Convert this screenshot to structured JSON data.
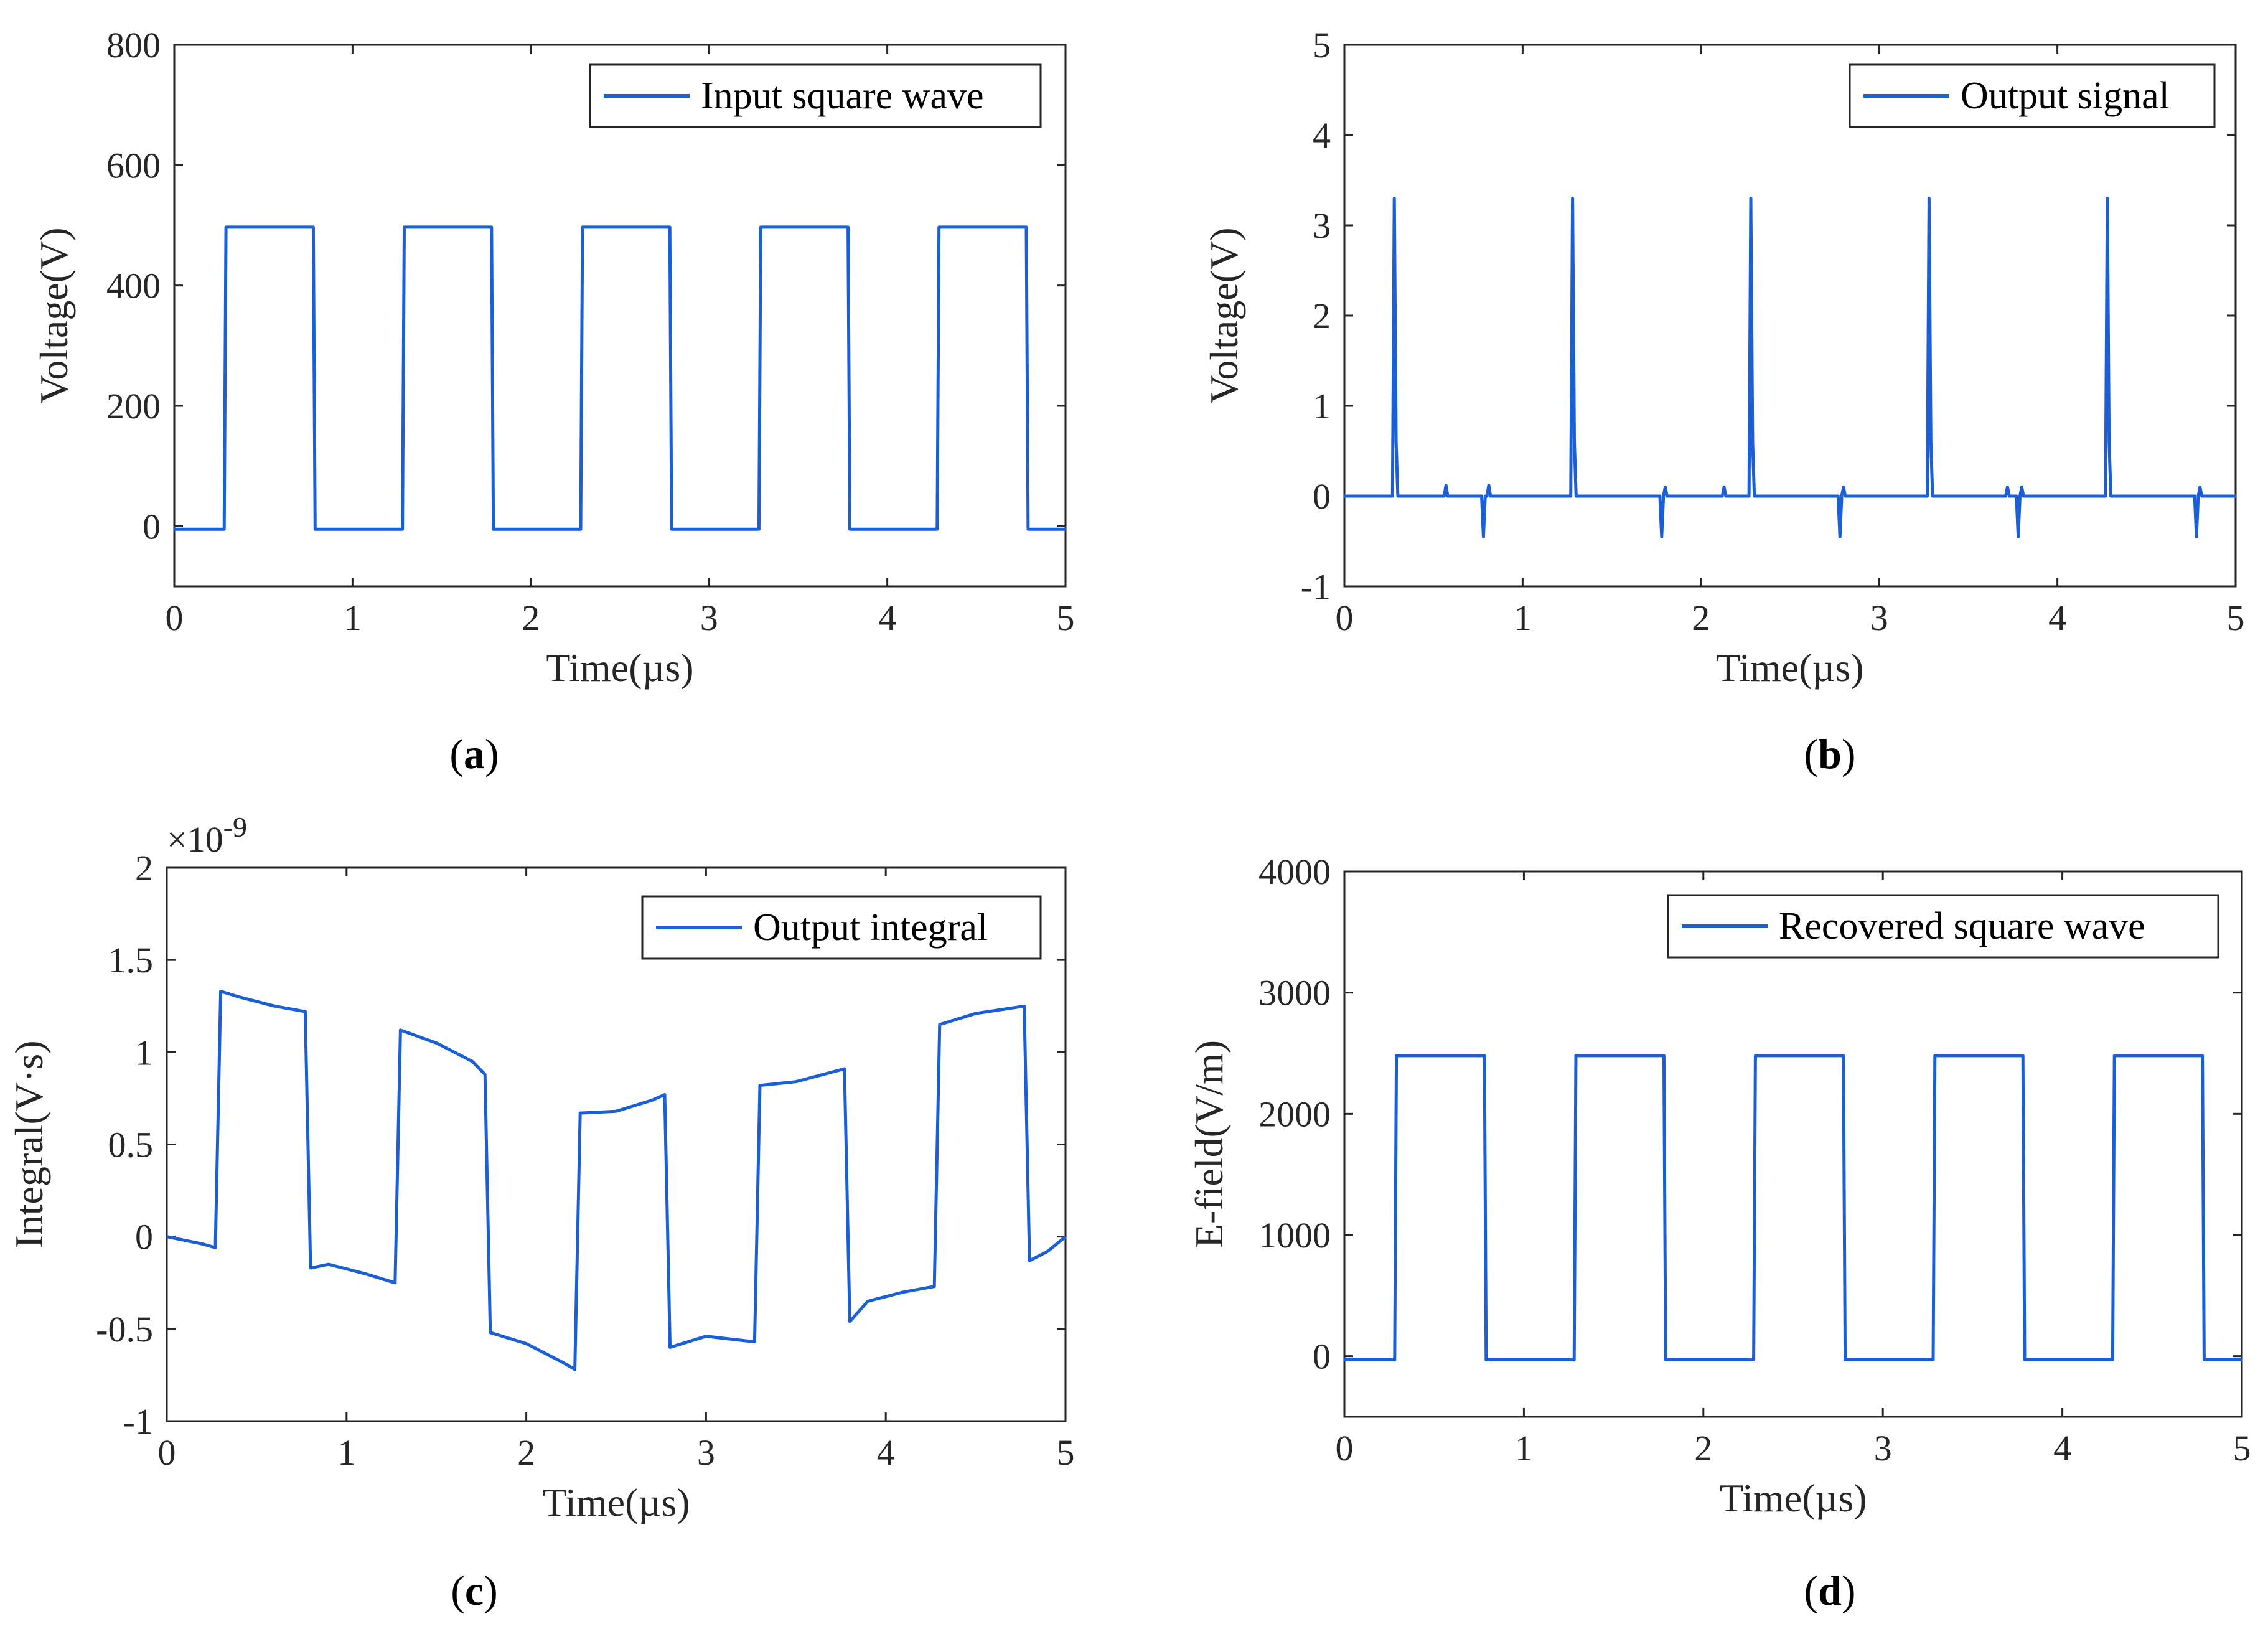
{
  "line_color": "#1a5fd8",
  "chart_data": [
    {
      "type": "line",
      "panel": "a",
      "caption_open": "(",
      "caption_letter": "a",
      "caption_close": ")",
      "xlabel": "Time(µs)",
      "ylabel": "Voltage(V)",
      "xlim": [
        0,
        5
      ],
      "ylim": [
        -100,
        800
      ],
      "xticks": [
        0,
        1,
        2,
        3,
        4,
        5
      ],
      "yticks": [
        0,
        200,
        400,
        600,
        800
      ],
      "ytick_labels": [
        "0",
        "200",
        "400",
        "600",
        "800"
      ],
      "exponent": "",
      "legend": "Input square wave",
      "legend_loc": "top-right",
      "series": [
        {
          "name": "Input square wave",
          "x": [
            0,
            0.28,
            0.29,
            0.78,
            0.79,
            1.28,
            1.29,
            1.78,
            1.79,
            2.28,
            2.29,
            2.78,
            2.79,
            3.28,
            3.29,
            3.78,
            3.79,
            4.28,
            4.29,
            4.78,
            4.79,
            5.0
          ],
          "y": [
            -5,
            -5,
            497,
            497,
            -5,
            -5,
            497,
            497,
            -5,
            -5,
            497,
            497,
            -5,
            -5,
            497,
            497,
            -5,
            -5,
            497,
            497,
            -5,
            -5
          ]
        }
      ]
    },
    {
      "type": "line",
      "panel": "b",
      "caption_open": "(",
      "caption_letter": "b",
      "caption_close": ")",
      "xlabel": "Time(µs)",
      "ylabel": "Voltage(V)",
      "xlim": [
        0,
        5
      ],
      "ylim": [
        -1,
        5
      ],
      "xticks": [
        0,
        1,
        2,
        3,
        4,
        5
      ],
      "yticks": [
        -1,
        0,
        1,
        2,
        3,
        4,
        5
      ],
      "ytick_labels": [
        "-1",
        "0",
        "1",
        "2",
        "3",
        "4",
        "5"
      ],
      "exponent": "",
      "legend": "Output signal",
      "legend_loc": "top-right",
      "series": [
        {
          "name": "Output signal",
          "x": [
            0,
            0.27,
            0.28,
            0.29,
            0.3,
            0.56,
            0.57,
            0.58,
            0.77,
            0.78,
            0.79,
            0.8,
            0.81,
            0.82,
            1.27,
            1.28,
            1.29,
            1.3,
            1.77,
            1.78,
            1.79,
            1.8,
            1.81,
            2.12,
            2.13,
            2.14,
            2.27,
            2.28,
            2.29,
            2.3,
            2.77,
            2.78,
            2.79,
            2.8,
            2.81,
            3.27,
            3.28,
            3.29,
            3.3,
            3.71,
            3.72,
            3.73,
            3.77,
            3.78,
            3.79,
            3.8,
            3.81,
            4.27,
            4.28,
            4.29,
            4.3,
            4.77,
            4.78,
            4.79,
            4.8,
            4.81,
            5.0
          ],
          "y": [
            0,
            0,
            3.3,
            0.6,
            0,
            0,
            0.12,
            0,
            0,
            -0.45,
            0,
            0,
            0.12,
            0,
            0,
            3.3,
            0.6,
            0,
            0,
            -0.45,
            0,
            0.1,
            0,
            0,
            0.1,
            0,
            0,
            3.3,
            0.6,
            0,
            0,
            -0.45,
            0,
            0.1,
            0,
            0,
            3.3,
            0.6,
            0,
            0,
            0.1,
            0,
            0,
            -0.45,
            0,
            0.1,
            0,
            0,
            3.3,
            0.6,
            0,
            0,
            -0.45,
            0,
            0.1,
            0,
            0
          ]
        }
      ]
    },
    {
      "type": "line",
      "panel": "c",
      "caption_open": "(",
      "caption_letter": "c",
      "caption_close": ")",
      "xlabel": "Time(µs)",
      "ylabel": "Integral(V·s)",
      "xlim": [
        0,
        5
      ],
      "ylim": [
        -1,
        2
      ],
      "xticks": [
        0,
        1,
        2,
        3,
        4,
        5
      ],
      "yticks": [
        -1,
        -0.5,
        0,
        0.5,
        1,
        1.5,
        2
      ],
      "ytick_labels": [
        "-1",
        "-0.5",
        "0",
        "0.5",
        "1",
        "1.5",
        "2"
      ],
      "exponent": "×10",
      "exponent_power": "-9",
      "legend": "Output integral",
      "legend_loc": "top-right",
      "series": [
        {
          "name": "Output integral",
          "x": [
            0,
            0.1,
            0.2,
            0.27,
            0.3,
            0.4,
            0.6,
            0.77,
            0.8,
            0.9,
            1.1,
            1.27,
            1.3,
            1.5,
            1.7,
            1.77,
            1.8,
            2.0,
            2.2,
            2.27,
            2.3,
            2.5,
            2.7,
            2.77,
            2.8,
            3.0,
            3.27,
            3.3,
            3.5,
            3.77,
            3.8,
            3.9,
            4.1,
            4.27,
            4.3,
            4.5,
            4.77,
            4.8,
            4.9,
            5.0
          ],
          "y": [
            0,
            -0.02,
            -0.04,
            -0.06,
            1.33,
            1.3,
            1.25,
            1.22,
            -0.17,
            -0.15,
            -0.2,
            -0.25,
            1.12,
            1.05,
            0.95,
            0.88,
            -0.52,
            -0.58,
            -0.68,
            -0.72,
            0.67,
            0.68,
            0.74,
            0.77,
            -0.6,
            -0.54,
            -0.57,
            0.82,
            0.84,
            0.91,
            -0.46,
            -0.35,
            -0.3,
            -0.27,
            1.15,
            1.21,
            1.25,
            -0.13,
            -0.08,
            0.0
          ]
        }
      ]
    },
    {
      "type": "line",
      "panel": "d",
      "caption_open": "(",
      "caption_letter": "d",
      "caption_close": ")",
      "xlabel": "Time(µs)",
      "ylabel": "E-field(V/m)",
      "xlim": [
        0,
        5
      ],
      "ylim": [
        -500,
        4000
      ],
      "xticks": [
        0,
        1,
        2,
        3,
        4,
        5
      ],
      "yticks": [
        0,
        1000,
        2000,
        3000,
        4000
      ],
      "ytick_labels": [
        "0",
        "1000",
        "2000",
        "3000",
        "4000"
      ],
      "exponent": "",
      "legend": "Recovered square wave",
      "legend_loc": "top-right",
      "series": [
        {
          "name": "Recovered square wave",
          "x": [
            0,
            0.28,
            0.29,
            0.78,
            0.79,
            1.28,
            1.29,
            1.78,
            1.79,
            2.28,
            2.29,
            2.78,
            2.79,
            3.28,
            3.29,
            3.78,
            3.79,
            4.28,
            4.29,
            4.78,
            4.79,
            5.0
          ],
          "y": [
            -30,
            -30,
            2480,
            2480,
            -30,
            -30,
            2480,
            2480,
            -30,
            -30,
            2480,
            2480,
            -30,
            -30,
            2480,
            2480,
            -30,
            -30,
            2480,
            2480,
            -30,
            -30
          ]
        }
      ]
    }
  ]
}
